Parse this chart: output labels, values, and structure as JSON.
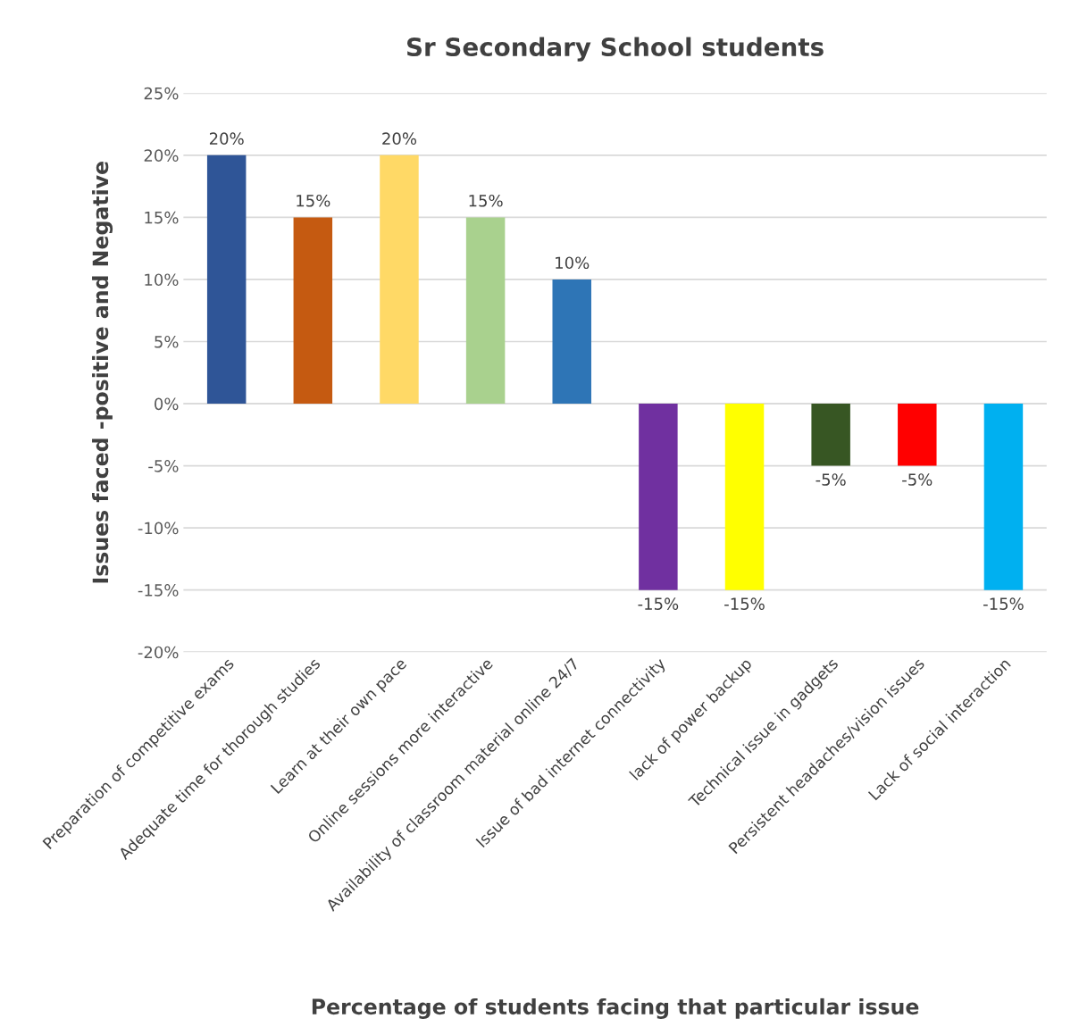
{
  "chart_data": {
    "type": "bar",
    "title": "Sr Secondary School students",
    "xlabel": "Percentage of students facing that particular issue",
    "ylabel": "Issues faced -positive and Negative",
    "categories": [
      "Preparation of competitive exams",
      "Adequate time for thorough studies",
      "Learn at their own pace",
      "Online sessions more interactive",
      "Availability of classroom material online 24/7",
      "Issue of bad internet connectivity",
      "lack of power backup",
      "Technical issue in gadgets",
      "Persistent headaches/vision issues",
      "Lack of social interaction"
    ],
    "values": [
      20,
      15,
      20,
      15,
      10,
      -15,
      -15,
      -5,
      -5,
      -15
    ],
    "colors": [
      "#2f5597",
      "#c55a11",
      "#ffd966",
      "#a9d18e",
      "#2e75b6",
      "#7030a0",
      "#ffff00",
      "#375623",
      "#ff0000",
      "#00b0f0"
    ],
    "value_labels": [
      "20%",
      "15%",
      "20%",
      "15%",
      "10%",
      "-15%",
      "-15%",
      "-5%",
      "-5%",
      "-15%"
    ],
    "ylim": [
      -20,
      25
    ],
    "yticks": [
      {
        "value": -20,
        "label": "-20%"
      },
      {
        "value": -15,
        "label": "-15%"
      },
      {
        "value": -10,
        "label": "-10%"
      },
      {
        "value": -5,
        "label": "-5%"
      },
      {
        "value": 0,
        "label": "0%"
      },
      {
        "value": 5,
        "label": "5%"
      },
      {
        "value": 10,
        "label": "10%"
      },
      {
        "value": 15,
        "label": "15%"
      },
      {
        "value": 20,
        "label": "20%"
      },
      {
        "value": 25,
        "label": "25%"
      }
    ],
    "grid": "y",
    "legend": false
  }
}
